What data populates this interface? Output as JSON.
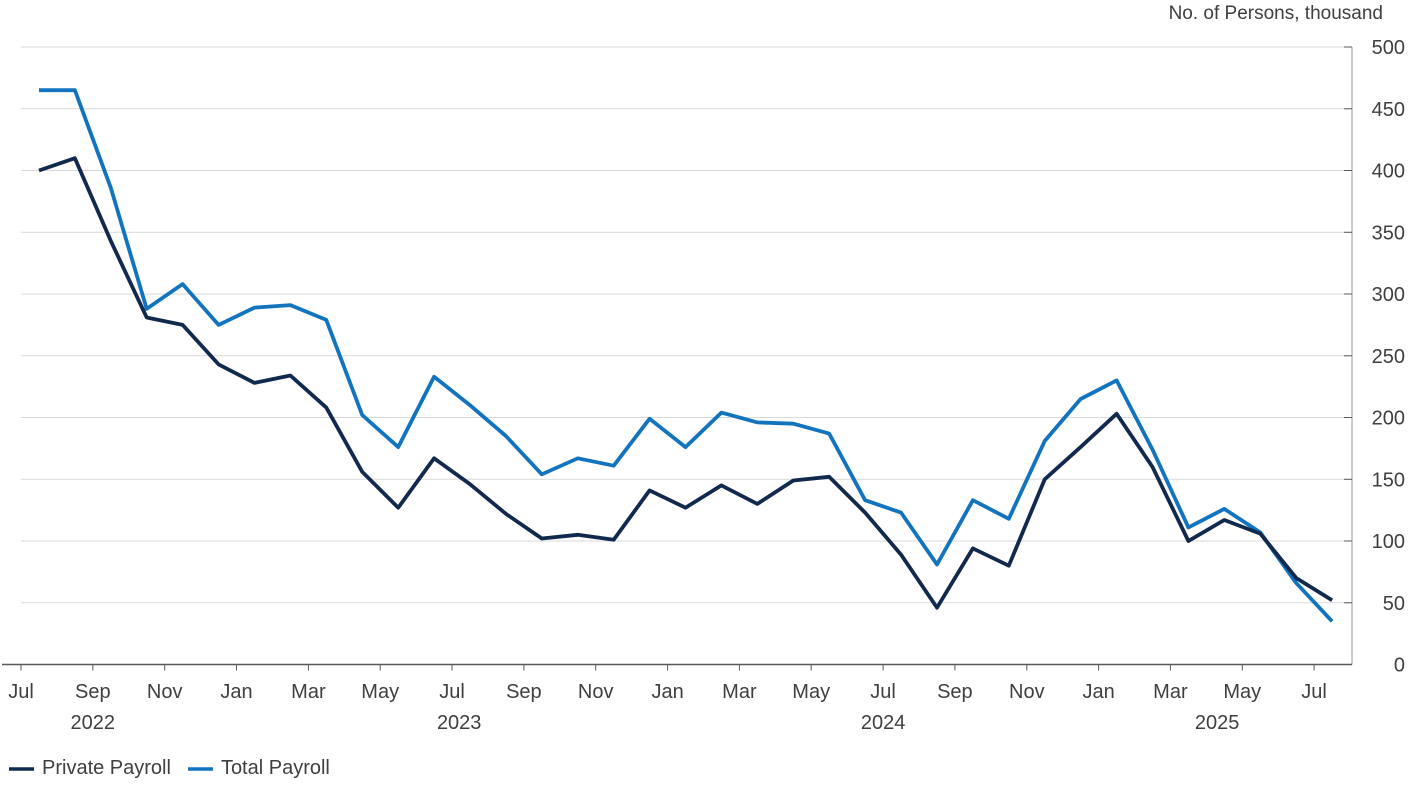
{
  "title": "No. of Persons, thousand",
  "legend": [
    {
      "label": "Private Payroll",
      "color": "#12294e"
    },
    {
      "label": "Total Payroll",
      "color": "#1274bf"
    }
  ],
  "colors": {
    "grid": "#d9d9d9",
    "axis_bottom": "#595959",
    "axis_right": "#9b9b9b",
    "tick": "#595959",
    "text": "#3f3f3f"
  },
  "chart_data": {
    "type": "line",
    "title": "No. of Persons, thousand",
    "ylabel": "No. of Persons, thousand",
    "ylim": [
      0,
      500
    ],
    "y_ticks": [
      0,
      50,
      100,
      150,
      200,
      250,
      300,
      350,
      400,
      450,
      500
    ],
    "grid": true,
    "axis_side": "right",
    "legend_position": "bottom-left",
    "categories": [
      "Jul 2022",
      "Aug 2022",
      "Sep 2022",
      "Oct 2022",
      "Nov 2022",
      "Dec 2022",
      "Jan 2023",
      "Feb 2023",
      "Mar 2023",
      "Apr 2023",
      "May 2023",
      "Jun 2023",
      "Jul 2023",
      "Aug 2023",
      "Sep 2023",
      "Oct 2023",
      "Nov 2023",
      "Dec 2023",
      "Jan 2024",
      "Feb 2024",
      "Mar 2024",
      "Apr 2024",
      "May 2024",
      "Jun 2024",
      "Jul 2024",
      "Aug 2024",
      "Sep 2024",
      "Oct 2024",
      "Nov 2024",
      "Dec 2024",
      "Jan 2025",
      "Feb 2025",
      "Mar 2025",
      "Apr 2025",
      "May 2025",
      "Jun 2025",
      "Jul 2025"
    ],
    "x_tick_labels": [
      "Jul",
      "Sep",
      "Nov",
      "Jan",
      "Mar",
      "May",
      "Jul",
      "Sep",
      "Nov",
      "Jan",
      "Mar",
      "May",
      "Jul",
      "Sep",
      "Nov",
      "Jan",
      "Mar",
      "May",
      "Jul"
    ],
    "year_labels": [
      {
        "label": "2022",
        "month_index": 1.5
      },
      {
        "label": "2023",
        "month_index": 11.7
      },
      {
        "label": "2024",
        "month_index": 23.5
      },
      {
        "label": "2025",
        "month_index": 32.8
      }
    ],
    "series": [
      {
        "name": "Total Payroll",
        "color": "#1274bf",
        "values": [
          465,
          465,
          386,
          288,
          308,
          275,
          289,
          291,
          279,
          202,
          176,
          233,
          210,
          185,
          154,
          167,
          161,
          199,
          176,
          204,
          196,
          195,
          187,
          133,
          123,
          81,
          133,
          118,
          181,
          215,
          230,
          174,
          111,
          126,
          107,
          66,
          35
        ]
      },
      {
        "name": "Private Payroll",
        "color": "#12294e",
        "values": [
          400,
          410,
          343,
          281,
          275,
          243,
          228,
          234,
          208,
          156,
          127,
          167,
          146,
          122,
          102,
          105,
          101,
          141,
          127,
          145,
          130,
          149,
          152,
          123,
          89,
          46,
          94,
          80,
          150,
          176,
          203,
          160,
          100,
          117,
          106,
          70,
          52
        ]
      }
    ]
  }
}
